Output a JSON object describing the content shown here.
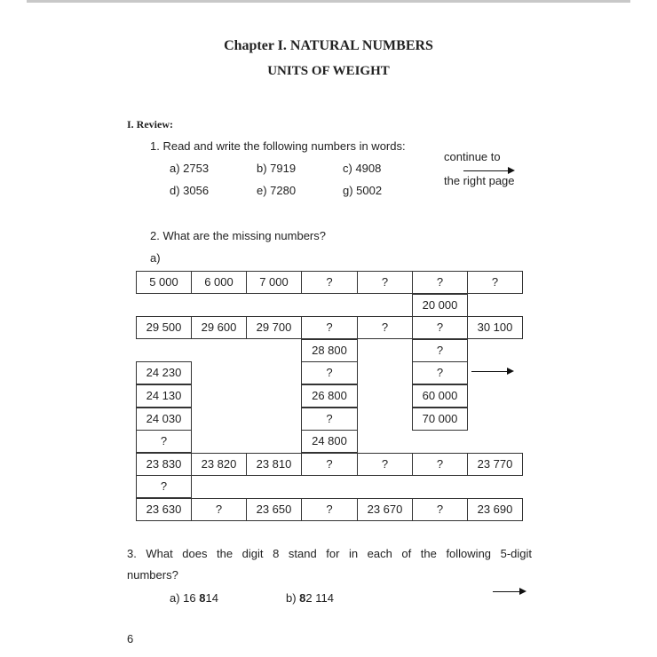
{
  "chapter_title": "Chapter I. NATURAL NUMBERS",
  "subtitle": "UNITS OF WEIGHT",
  "section": "I. Review:",
  "q1": {
    "prompt": "1. Read and write the following numbers in words:",
    "items": [
      "a) 2753",
      "b) 7919",
      "c) 4908",
      "d) 3056",
      "e) 7280",
      "g) 5002"
    ],
    "note_line1": "continue to",
    "note_line2": "the right page"
  },
  "q2": {
    "prompt": "2. What are the missing numbers?",
    "part": "a)",
    "grid": [
      [
        "5 000",
        "6 000",
        "7 000",
        "?",
        "?",
        "?",
        "?"
      ],
      [
        null,
        null,
        null,
        null,
        null,
        "20 000",
        null
      ],
      [
        "29 500",
        "29 600",
        "29 700",
        "?",
        "?",
        "?",
        "30 100"
      ],
      [
        null,
        null,
        null,
        "28 800",
        null,
        "?",
        null
      ],
      [
        "24 230",
        null,
        null,
        "?",
        null,
        "?",
        null
      ],
      [
        "24 130",
        null,
        null,
        "26 800",
        null,
        "60 000",
        null
      ],
      [
        "24 030",
        null,
        null,
        "?",
        null,
        "70 000",
        null
      ],
      [
        "?",
        null,
        null,
        "24 800",
        null,
        null,
        null
      ],
      [
        "23 830",
        "23 820",
        "23 810",
        "?",
        "?",
        "?",
        "23 770"
      ],
      [
        "?",
        null,
        null,
        null,
        null,
        null,
        null
      ],
      [
        "23 630",
        "?",
        "23 650",
        "?",
        "23 670",
        "?",
        "23 690"
      ]
    ]
  },
  "q3": {
    "prompt_line1": "3. What does the digit 8 stand for in each of the following 5-digit",
    "prompt_line2": "numbers?",
    "a_prefix": "a) 16 ",
    "a_bold": "8",
    "a_suffix": "14",
    "b_prefix": "b) ",
    "b_bold": "8",
    "b_suffix": "2 114"
  },
  "page_number": "6"
}
